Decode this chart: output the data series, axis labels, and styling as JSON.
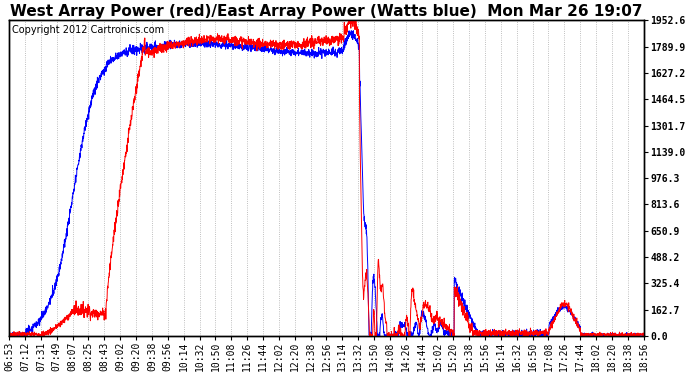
{
  "title": "West Array Power (red)/East Array Power (Watts blue)  Mon Mar 26 19:07",
  "copyright": "Copyright 2012 Cartronics.com",
  "ylabel_right_ticks": [
    0.0,
    162.7,
    325.4,
    488.2,
    650.9,
    813.6,
    976.3,
    1139.0,
    1301.7,
    1464.5,
    1627.2,
    1789.9,
    1952.6
  ],
  "ymax": 1952.6,
  "ymin": 0.0,
  "background_color": "#ffffff",
  "grid_color": "#aaaaaa",
  "red_color": "#ff0000",
  "blue_color": "#0000ff",
  "title_fontsize": 11,
  "copyright_fontsize": 7,
  "tick_fontsize": 7,
  "x_tick_labels": [
    "06:53",
    "07:12",
    "07:31",
    "07:49",
    "08:07",
    "08:25",
    "08:43",
    "09:02",
    "09:20",
    "09:38",
    "09:56",
    "10:14",
    "10:32",
    "10:50",
    "11:08",
    "11:26",
    "11:44",
    "12:02",
    "12:20",
    "12:38",
    "12:56",
    "13:14",
    "13:32",
    "13:50",
    "14:08",
    "14:26",
    "14:44",
    "15:02",
    "15:20",
    "15:38",
    "15:56",
    "16:14",
    "16:32",
    "16:50",
    "17:08",
    "17:26",
    "17:44",
    "18:02",
    "18:20",
    "18:38",
    "18:56"
  ]
}
